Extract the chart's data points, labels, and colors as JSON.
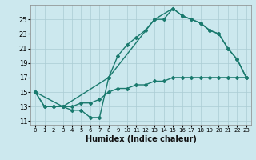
{
  "line1_x": [
    0,
    1,
    2,
    3,
    4,
    5,
    6,
    7,
    8,
    9,
    10,
    11,
    12,
    13,
    14,
    15,
    16,
    17,
    18,
    19,
    20,
    21,
    22,
    23
  ],
  "line1_y": [
    15,
    13,
    13,
    13,
    12.5,
    12.5,
    11.5,
    11.5,
    17,
    20,
    21.5,
    22.5,
    23.5,
    25,
    25,
    26.5,
    25.5,
    25,
    24.5,
    23.5,
    23,
    21,
    19.5,
    17
  ],
  "line2_x": [
    0,
    3,
    8,
    13,
    15,
    16,
    17,
    18,
    19,
    20,
    21,
    22,
    23
  ],
  "line2_y": [
    15,
    13,
    17,
    25,
    26.5,
    25.5,
    25,
    24.5,
    23.5,
    23,
    21,
    19.5,
    17
  ],
  "line3_x": [
    0,
    1,
    2,
    3,
    4,
    5,
    6,
    7,
    8,
    9,
    10,
    11,
    12,
    13,
    14,
    15,
    16,
    17,
    18,
    19,
    20,
    21,
    22,
    23
  ],
  "line3_y": [
    15,
    13,
    13,
    13,
    13,
    13.5,
    13.5,
    14,
    15,
    15.5,
    15.5,
    16,
    16,
    16.5,
    16.5,
    17,
    17,
    17,
    17,
    17,
    17,
    17,
    17,
    17
  ],
  "color": "#1a7a6e",
  "bg_color": "#cce8ee",
  "grid_color": "#aaccd4",
  "xlabel": "Humidex (Indice chaleur)",
  "xlim": [
    -0.5,
    23.5
  ],
  "ylim": [
    10.5,
    27
  ],
  "xticks": [
    0,
    1,
    2,
    3,
    4,
    5,
    6,
    7,
    8,
    9,
    10,
    11,
    12,
    13,
    14,
    15,
    16,
    17,
    18,
    19,
    20,
    21,
    22,
    23
  ],
  "yticks": [
    11,
    13,
    15,
    17,
    19,
    21,
    23,
    25
  ],
  "marker": "D",
  "markersize": 2,
  "linewidth": 1.0
}
